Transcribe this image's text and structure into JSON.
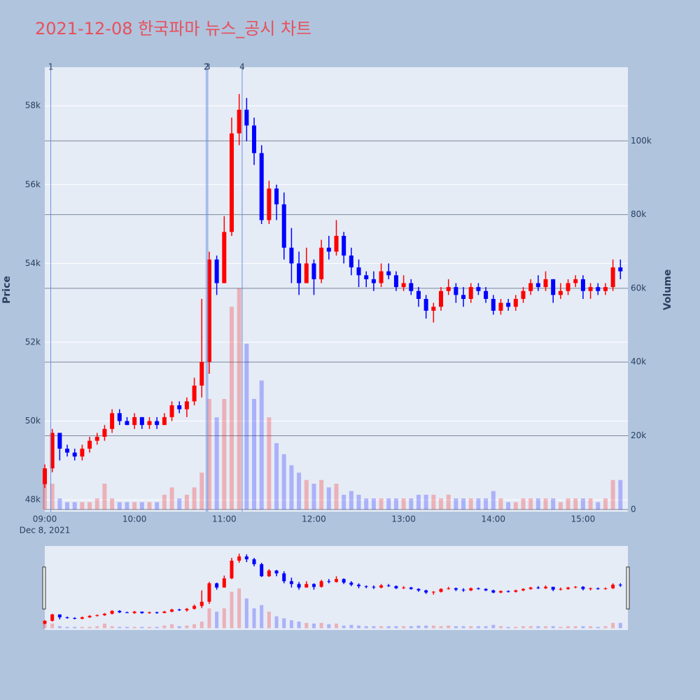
{
  "chart_data": {
    "type": "candlestick",
    "title": "2021-12-08 한국파마 뉴스_공시 차트",
    "y_label": "Price",
    "y2_label": "Volume",
    "x_date_label": "Dec 8, 2021",
    "increasing_color": "#ff0000",
    "decreasing_color": "#0000ff",
    "title_color": "#e8505b",
    "x": [
      "09:00",
      "09:05",
      "09:10",
      "09:15",
      "09:20",
      "09:25",
      "09:30",
      "09:35",
      "09:40",
      "09:45",
      "09:50",
      "09:55",
      "10:00",
      "10:05",
      "10:10",
      "10:15",
      "10:20",
      "10:25",
      "10:30",
      "10:35",
      "10:40",
      "10:45",
      "10:50",
      "10:55",
      "11:00",
      "11:05",
      "11:10",
      "11:15",
      "11:20",
      "11:25",
      "11:30",
      "11:35",
      "11:40",
      "11:45",
      "11:50",
      "11:55",
      "12:00",
      "12:05",
      "12:10",
      "12:15",
      "12:20",
      "12:25",
      "12:30",
      "12:35",
      "12:40",
      "12:45",
      "12:50",
      "12:55",
      "13:00",
      "13:05",
      "13:10",
      "13:15",
      "13:20",
      "13:25",
      "13:30",
      "13:35",
      "13:40",
      "13:45",
      "13:50",
      "13:55",
      "14:00",
      "14:05",
      "14:10",
      "14:15",
      "14:20",
      "14:25",
      "14:30",
      "14:35",
      "14:40",
      "14:45",
      "14:50",
      "14:55",
      "15:00",
      "15:05",
      "15:10",
      "15:15",
      "15:20",
      "15:25"
    ],
    "open": [
      48400,
      48800,
      49700,
      49300,
      49200,
      49100,
      49300,
      49500,
      49600,
      49800,
      50200,
      50000,
      49900,
      50100,
      49900,
      50000,
      49900,
      50100,
      50400,
      50300,
      50500,
      50900,
      51500,
      54100,
      53500,
      54800,
      57300,
      57900,
      57500,
      56800,
      55100,
      55900,
      55500,
      54400,
      54000,
      53500,
      54000,
      53600,
      54400,
      54300,
      54700,
      54200,
      53900,
      53700,
      53600,
      53500,
      53800,
      53700,
      53400,
      53500,
      53300,
      53100,
      52800,
      52900,
      53300,
      53400,
      53200,
      53100,
      53400,
      53300,
      53100,
      52800,
      53000,
      52900,
      53100,
      53300,
      53500,
      53400,
      53600,
      53200,
      53300,
      53500,
      53600,
      53300,
      53400,
      53300,
      53400,
      53900
    ],
    "high": [
      48900,
      49800,
      49700,
      49400,
      49300,
      49400,
      49600,
      49700,
      49900,
      50300,
      50300,
      50100,
      50200,
      50100,
      50100,
      50100,
      50200,
      50500,
      50500,
      50600,
      51100,
      53100,
      54300,
      54200,
      55200,
      57700,
      58300,
      58200,
      57700,
      57000,
      56100,
      56000,
      55800,
      54900,
      54300,
      54400,
      54100,
      54600,
      54700,
      55100,
      54800,
      54400,
      54100,
      53800,
      53800,
      54000,
      54000,
      53800,
      53700,
      53600,
      53400,
      53200,
      53000,
      53400,
      53600,
      53500,
      53400,
      53500,
      53500,
      53400,
      53200,
      53100,
      53100,
      53200,
      53400,
      53600,
      53700,
      53800,
      53600,
      53500,
      53600,
      53700,
      53700,
      53500,
      53500,
      53500,
      54100,
      54100
    ],
    "low": [
      48300,
      48700,
      49000,
      49100,
      49000,
      49000,
      49200,
      49400,
      49500,
      49700,
      49900,
      49900,
      49800,
      49800,
      49800,
      49800,
      49900,
      50000,
      50200,
      50100,
      50400,
      50600,
      51200,
      53200,
      53500,
      54700,
      57000,
      57100,
      56500,
      55000,
      55000,
      55100,
      54100,
      53500,
      53200,
      53500,
      53200,
      53500,
      54100,
      54200,
      54000,
      53700,
      53400,
      53400,
      53300,
      53400,
      53600,
      53300,
      53300,
      53200,
      52900,
      52600,
      52500,
      52800,
      53200,
      53000,
      52900,
      53000,
      53200,
      53000,
      52700,
      52700,
      52800,
      52800,
      53000,
      53200,
      53300,
      53300,
      53000,
      53100,
      53200,
      53400,
      53100,
      53100,
      53200,
      53200,
      53300,
      53600
    ],
    "close": [
      48800,
      49700,
      49300,
      49200,
      49100,
      49300,
      49500,
      49600,
      49800,
      50200,
      50000,
      49900,
      50100,
      49900,
      50000,
      49900,
      50100,
      50400,
      50300,
      50500,
      50900,
      51500,
      54100,
      53500,
      54800,
      57300,
      57900,
      57500,
      56800,
      55100,
      55900,
      55500,
      54400,
      54000,
      53500,
      54000,
      53600,
      54400,
      54300,
      54700,
      54200,
      53900,
      53700,
      53600,
      53500,
      53800,
      53700,
      53400,
      53500,
      53300,
      53100,
      52800,
      52900,
      53300,
      53400,
      53200,
      53100,
      53400,
      53300,
      53100,
      52800,
      53000,
      52900,
      53100,
      53300,
      53500,
      53400,
      53600,
      53200,
      53300,
      53500,
      53600,
      53300,
      53400,
      53300,
      53400,
      53900,
      53800
    ],
    "volume": [
      8000,
      7000,
      3000,
      2000,
      2000,
      2000,
      2000,
      3000,
      7000,
      3000,
      2000,
      2000,
      2000,
      2000,
      2000,
      2000,
      4000,
      6000,
      3000,
      4000,
      6000,
      10000,
      30000,
      25000,
      30000,
      55000,
      60000,
      45000,
      30000,
      35000,
      25000,
      18000,
      15000,
      12000,
      10000,
      8000,
      7000,
      8000,
      6000,
      7000,
      4000,
      5000,
      4000,
      3000,
      3000,
      3000,
      3000,
      3000,
      3000,
      3000,
      4000,
      4000,
      4000,
      3000,
      4000,
      3000,
      3000,
      3000,
      3000,
      3000,
      5000,
      3000,
      2000,
      2000,
      3000,
      3000,
      3000,
      3000,
      3000,
      2000,
      3000,
      3000,
      3000,
      3000,
      2000,
      3000,
      8000,
      8000
    ],
    "xlim": [
      "09:00",
      "15:30"
    ],
    "xticks": [
      "09:00",
      "10:00",
      "11:00",
      "12:00",
      "13:00",
      "14:00",
      "15:00"
    ],
    "ylim": [
      47700,
      58980
    ],
    "yticks": [
      {
        "value": 48000,
        "label": "48k"
      },
      {
        "value": 50000,
        "label": "50k"
      },
      {
        "value": 52000,
        "label": "52k"
      },
      {
        "value": 54000,
        "label": "54k"
      },
      {
        "value": 56000,
        "label": "56k"
      },
      {
        "value": 58000,
        "label": "58k"
      }
    ],
    "y2lim": [
      -600,
      120000
    ],
    "y2ticks": [
      0,
      {
        "value": 20000,
        "label": "20k"
      },
      {
        "value": 40000,
        "label": "40k"
      },
      {
        "value": 60000,
        "label": "60k"
      },
      {
        "value": 80000,
        "label": "80k"
      },
      {
        "value": 100000,
        "label": "100k"
      }
    ],
    "annotations": [
      {
        "x": "09:04",
        "text": "1"
      },
      {
        "x": "10:48",
        "text": "2"
      },
      {
        "x": "10:49",
        "text": "3"
      },
      {
        "x": "11:12",
        "text": "4"
      }
    ],
    "grid": true,
    "range_slider": true
  }
}
